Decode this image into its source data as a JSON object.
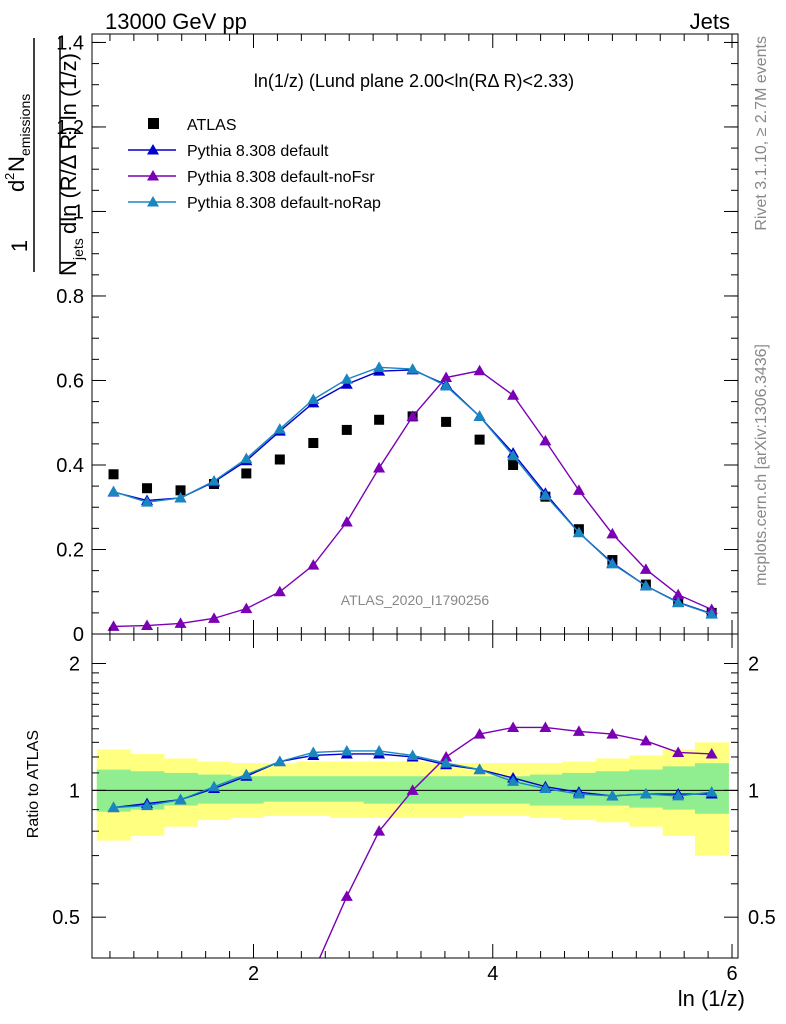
{
  "header": {
    "left": "13000 GeV pp",
    "right": "Jets"
  },
  "side_text": {
    "top": "Rivet 3.1.10, ≥ 2.7M events",
    "bottom": "mcplots.cern.ch [arXiv:1306.3436]"
  },
  "chart_data": [
    {
      "type": "scatter",
      "panel": "main",
      "title": "ln(1/z) (Lund plane 2.00<ln(RΔ R)<2.33)",
      "ylabel": "1/N_jets d²N_emissions / dln(R/ΔR) ln(1/z)",
      "ylabel_parts": {
        "one": "1",
        "num_d": "d",
        "num_sup": "2",
        "num_N": "N",
        "num_sub": "emissions",
        "den_N": "N",
        "den_sub": "jets",
        "den_rest": "dln (R/Δ R) ln (1/z)"
      },
      "watermark": "ATLAS_2020_I1790256",
      "xlim": [
        0.65,
        6.05
      ],
      "ylim": [
        0,
        1.42
      ],
      "yticks": [
        0,
        0.2,
        0.4,
        0.6,
        0.8,
        1,
        1.2,
        1.4
      ],
      "ytick_labels": [
        "0",
        "0.2",
        "0.4",
        "0.6",
        "0.8",
        "1",
        "1.2",
        "1.4"
      ],
      "legend_position": "top-left",
      "x": [
        0.83,
        1.11,
        1.39,
        1.67,
        1.94,
        2.22,
        2.5,
        2.78,
        3.05,
        3.33,
        3.61,
        3.89,
        4.17,
        4.44,
        4.72,
        5.0,
        5.28,
        5.55,
        5.83
      ],
      "series": [
        {
          "name": "ATLAS",
          "marker": "square",
          "color": "#000000",
          "values": [
            0.378,
            0.345,
            0.34,
            0.355,
            0.38,
            0.413,
            0.452,
            0.483,
            0.507,
            0.515,
            0.502,
            0.46,
            0.4,
            0.325,
            0.248,
            0.175,
            0.117,
            0.077,
            0.05
          ]
        },
        {
          "name": "Pythia 8.308 default",
          "marker": "triangle",
          "color": "#0000cc",
          "values": [
            0.336,
            0.316,
            0.322,
            0.36,
            0.41,
            0.48,
            0.547,
            0.591,
            0.622,
            0.625,
            0.59,
            0.515,
            0.428,
            0.333,
            0.24,
            0.168,
            0.114,
            0.075,
            0.048
          ]
        },
        {
          "name": "Pythia 8.308 default-noFsr",
          "marker": "triangle",
          "color": "#7b00b4",
          "values": [
            0.018,
            0.02,
            0.025,
            0.037,
            0.06,
            0.1,
            0.163,
            0.265,
            0.393,
            0.515,
            0.607,
            0.623,
            0.565,
            0.457,
            0.34,
            0.237,
            0.153,
            0.093,
            0.058
          ]
        },
        {
          "name": "Pythia 8.308 default-noRap",
          "marker": "triangle",
          "color": "#1a86c0",
          "values": [
            0.337,
            0.312,
            0.322,
            0.362,
            0.415,
            0.485,
            0.555,
            0.603,
            0.631,
            0.627,
            0.587,
            0.515,
            0.422,
            0.328,
            0.24,
            0.166,
            0.114,
            0.074,
            0.047
          ]
        }
      ]
    },
    {
      "type": "line",
      "panel": "ratio",
      "xlabel": "ln (1/z)",
      "ylabel": "Ratio to ATLAS",
      "xlim": [
        0.65,
        6.05
      ],
      "ylim": [
        0.4,
        2.35
      ],
      "y_scale": "log",
      "xticks": [
        2,
        4,
        6
      ],
      "xtick_labels": [
        "2",
        "4",
        "6"
      ],
      "yticks": [
        0.5,
        1,
        2
      ],
      "ytick_labels": [
        "0.5",
        "1",
        "2"
      ],
      "x_edges": [
        0.69,
        0.97,
        1.25,
        1.53,
        1.81,
        2.08,
        2.36,
        2.64,
        2.92,
        3.19,
        3.47,
        3.75,
        4.03,
        4.31,
        4.58,
        4.86,
        5.14,
        5.42,
        5.69,
        5.97
      ],
      "band_stat": {
        "color": "#90ee90",
        "lo": [
          0.89,
          0.9,
          0.92,
          0.93,
          0.93,
          0.94,
          0.94,
          0.94,
          0.93,
          0.93,
          0.93,
          0.93,
          0.93,
          0.92,
          0.92,
          0.92,
          0.91,
          0.9,
          0.88
        ],
        "hi": [
          1.12,
          1.11,
          1.1,
          1.09,
          1.08,
          1.08,
          1.08,
          1.08,
          1.08,
          1.08,
          1.08,
          1.08,
          1.08,
          1.09,
          1.1,
          1.11,
          1.12,
          1.14,
          1.16
        ]
      },
      "band_total": {
        "color": "#ffff80",
        "lo": [
          0.76,
          0.78,
          0.82,
          0.85,
          0.86,
          0.87,
          0.87,
          0.86,
          0.86,
          0.86,
          0.86,
          0.87,
          0.87,
          0.86,
          0.85,
          0.84,
          0.82,
          0.78,
          0.7
        ],
        "hi": [
          1.25,
          1.22,
          1.19,
          1.17,
          1.16,
          1.16,
          1.17,
          1.17,
          1.17,
          1.17,
          1.16,
          1.16,
          1.16,
          1.16,
          1.17,
          1.19,
          1.21,
          1.25,
          1.3
        ]
      },
      "x": [
        0.83,
        1.11,
        1.39,
        1.67,
        1.94,
        2.22,
        2.5,
        2.78,
        3.05,
        3.33,
        3.61,
        3.89,
        4.17,
        4.44,
        4.72,
        5.0,
        5.28,
        5.55,
        5.83
      ],
      "series": [
        {
          "name": "Pythia 8.308 default",
          "color": "#0000cc",
          "values": [
            0.91,
            0.93,
            0.95,
            1.01,
            1.08,
            1.17,
            1.21,
            1.22,
            1.22,
            1.2,
            1.15,
            1.12,
            1.07,
            1.02,
            0.99,
            0.97,
            0.98,
            0.98,
            0.98
          ]
        },
        {
          "name": "Pythia 8.308 default-noFsr",
          "color": "#7b00b4",
          "values": [
            null,
            null,
            null,
            null,
            null,
            null,
            0.37,
            0.56,
            0.8,
            1.0,
            1.2,
            1.36,
            1.41,
            1.41,
            1.38,
            1.36,
            1.31,
            1.23,
            1.22
          ]
        },
        {
          "name": "Pythia 8.308 default-noRap",
          "color": "#1a86c0",
          "values": [
            0.91,
            0.92,
            0.95,
            1.02,
            1.09,
            1.17,
            1.23,
            1.24,
            1.24,
            1.21,
            1.16,
            1.12,
            1.05,
            1.01,
            0.98,
            0.97,
            0.98,
            0.97,
            0.99
          ]
        }
      ]
    }
  ]
}
